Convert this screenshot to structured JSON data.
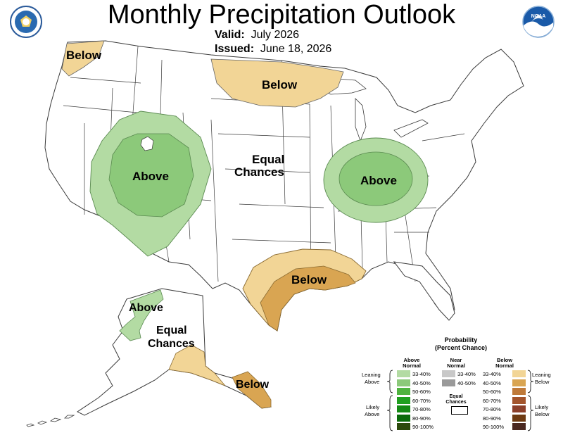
{
  "title": "Monthly Precipitation Outlook",
  "valid_label": "Valid:",
  "valid_value": "July 2026",
  "issued_label": "Issued:",
  "issued_value": "June 18, 2026",
  "icons": {
    "left_logo": "doc-seal-icon",
    "right_logo": "noaa-logo-icon"
  },
  "colors": {
    "above_33_40": "#b3dba3",
    "above_40_50": "#8cc97a",
    "below_33_40": "#f2d596",
    "below_40_50": "#d9a552",
    "land": "#ffffff",
    "border": "#3a3a3a"
  },
  "map_labels": {
    "below_pnw": "Below",
    "below_north": "Below",
    "above_west": "Above",
    "equal_1": "Equal",
    "equal_2": "Chances",
    "above_ohio": "Above",
    "below_gulf": "Below",
    "ak_above": "Above",
    "ak_equal_1": "Equal",
    "ak_equal_2": "Chances",
    "ak_below": "Below"
  },
  "legend": {
    "title_1": "Probability",
    "title_2": "(Percent Chance)",
    "above_1": "Above",
    "above_2": "Normal",
    "near_1": "Near",
    "near_2": "Normal",
    "below_1": "Below",
    "below_2": "Normal",
    "leaning_1": "Leaning",
    "above_word": "Above",
    "likely_1": "Likely",
    "likely_2": "Above",
    "leaning_r1": "Leaning",
    "leaning_r2": "Below",
    "likely_r1": "Likely",
    "likely_r2": "Below",
    "equal_1": "Equal",
    "equal_2": "Chances",
    "above_bins": [
      {
        "label": "33-40%",
        "color": "#b3dba3"
      },
      {
        "label": "40-50%",
        "color": "#8cc97a"
      },
      {
        "label": "50-60%",
        "color": "#4fb33f"
      },
      {
        "label": "60-70%",
        "color": "#20a020"
      },
      {
        "label": "70-80%",
        "color": "#158a15"
      },
      {
        "label": "80-90%",
        "color": "#0b6b0b"
      },
      {
        "label": "90-100%",
        "color": "#2c4a0c"
      }
    ],
    "near_bins": [
      {
        "label": "33-40%",
        "color": "#c8c8c8"
      },
      {
        "label": "40-50%",
        "color": "#9a9a9a"
      }
    ],
    "below_bins": [
      {
        "label": "33-40%",
        "color": "#f2d596"
      },
      {
        "label": "40-50%",
        "color": "#d9a552"
      },
      {
        "label": "50-60%",
        "color": "#bf7a3a"
      },
      {
        "label": "60-70%",
        "color": "#a3542c"
      },
      {
        "label": "70-80%",
        "color": "#8c3f2a"
      },
      {
        "label": "80-90%",
        "color": "#6e3a12"
      },
      {
        "label": "90-100%",
        "color": "#4a2820"
      }
    ]
  }
}
